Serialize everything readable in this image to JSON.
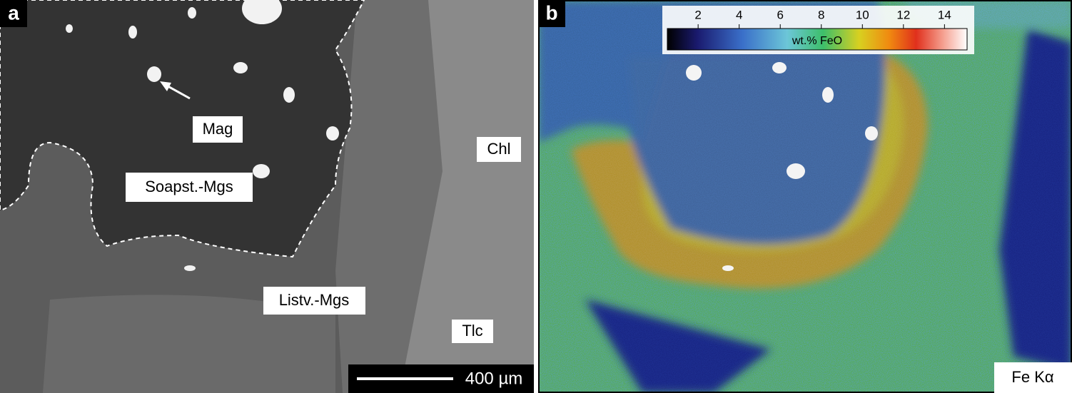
{
  "panels": [
    {
      "label": "a",
      "annotations": [
        "Mag",
        "Soapst.-Mgs",
        "Chl",
        "Listv.-Mgs",
        "Tlc"
      ],
      "scale_bar": "400 µm"
    },
    {
      "label": "b",
      "colorbar": {
        "label": "wt.% FeO",
        "lim": [
          0.5,
          15.1
        ],
        "ticks": [
          2,
          4,
          6,
          8,
          10,
          12,
          14
        ]
      },
      "annotation": "Fe Kα"
    }
  ]
}
